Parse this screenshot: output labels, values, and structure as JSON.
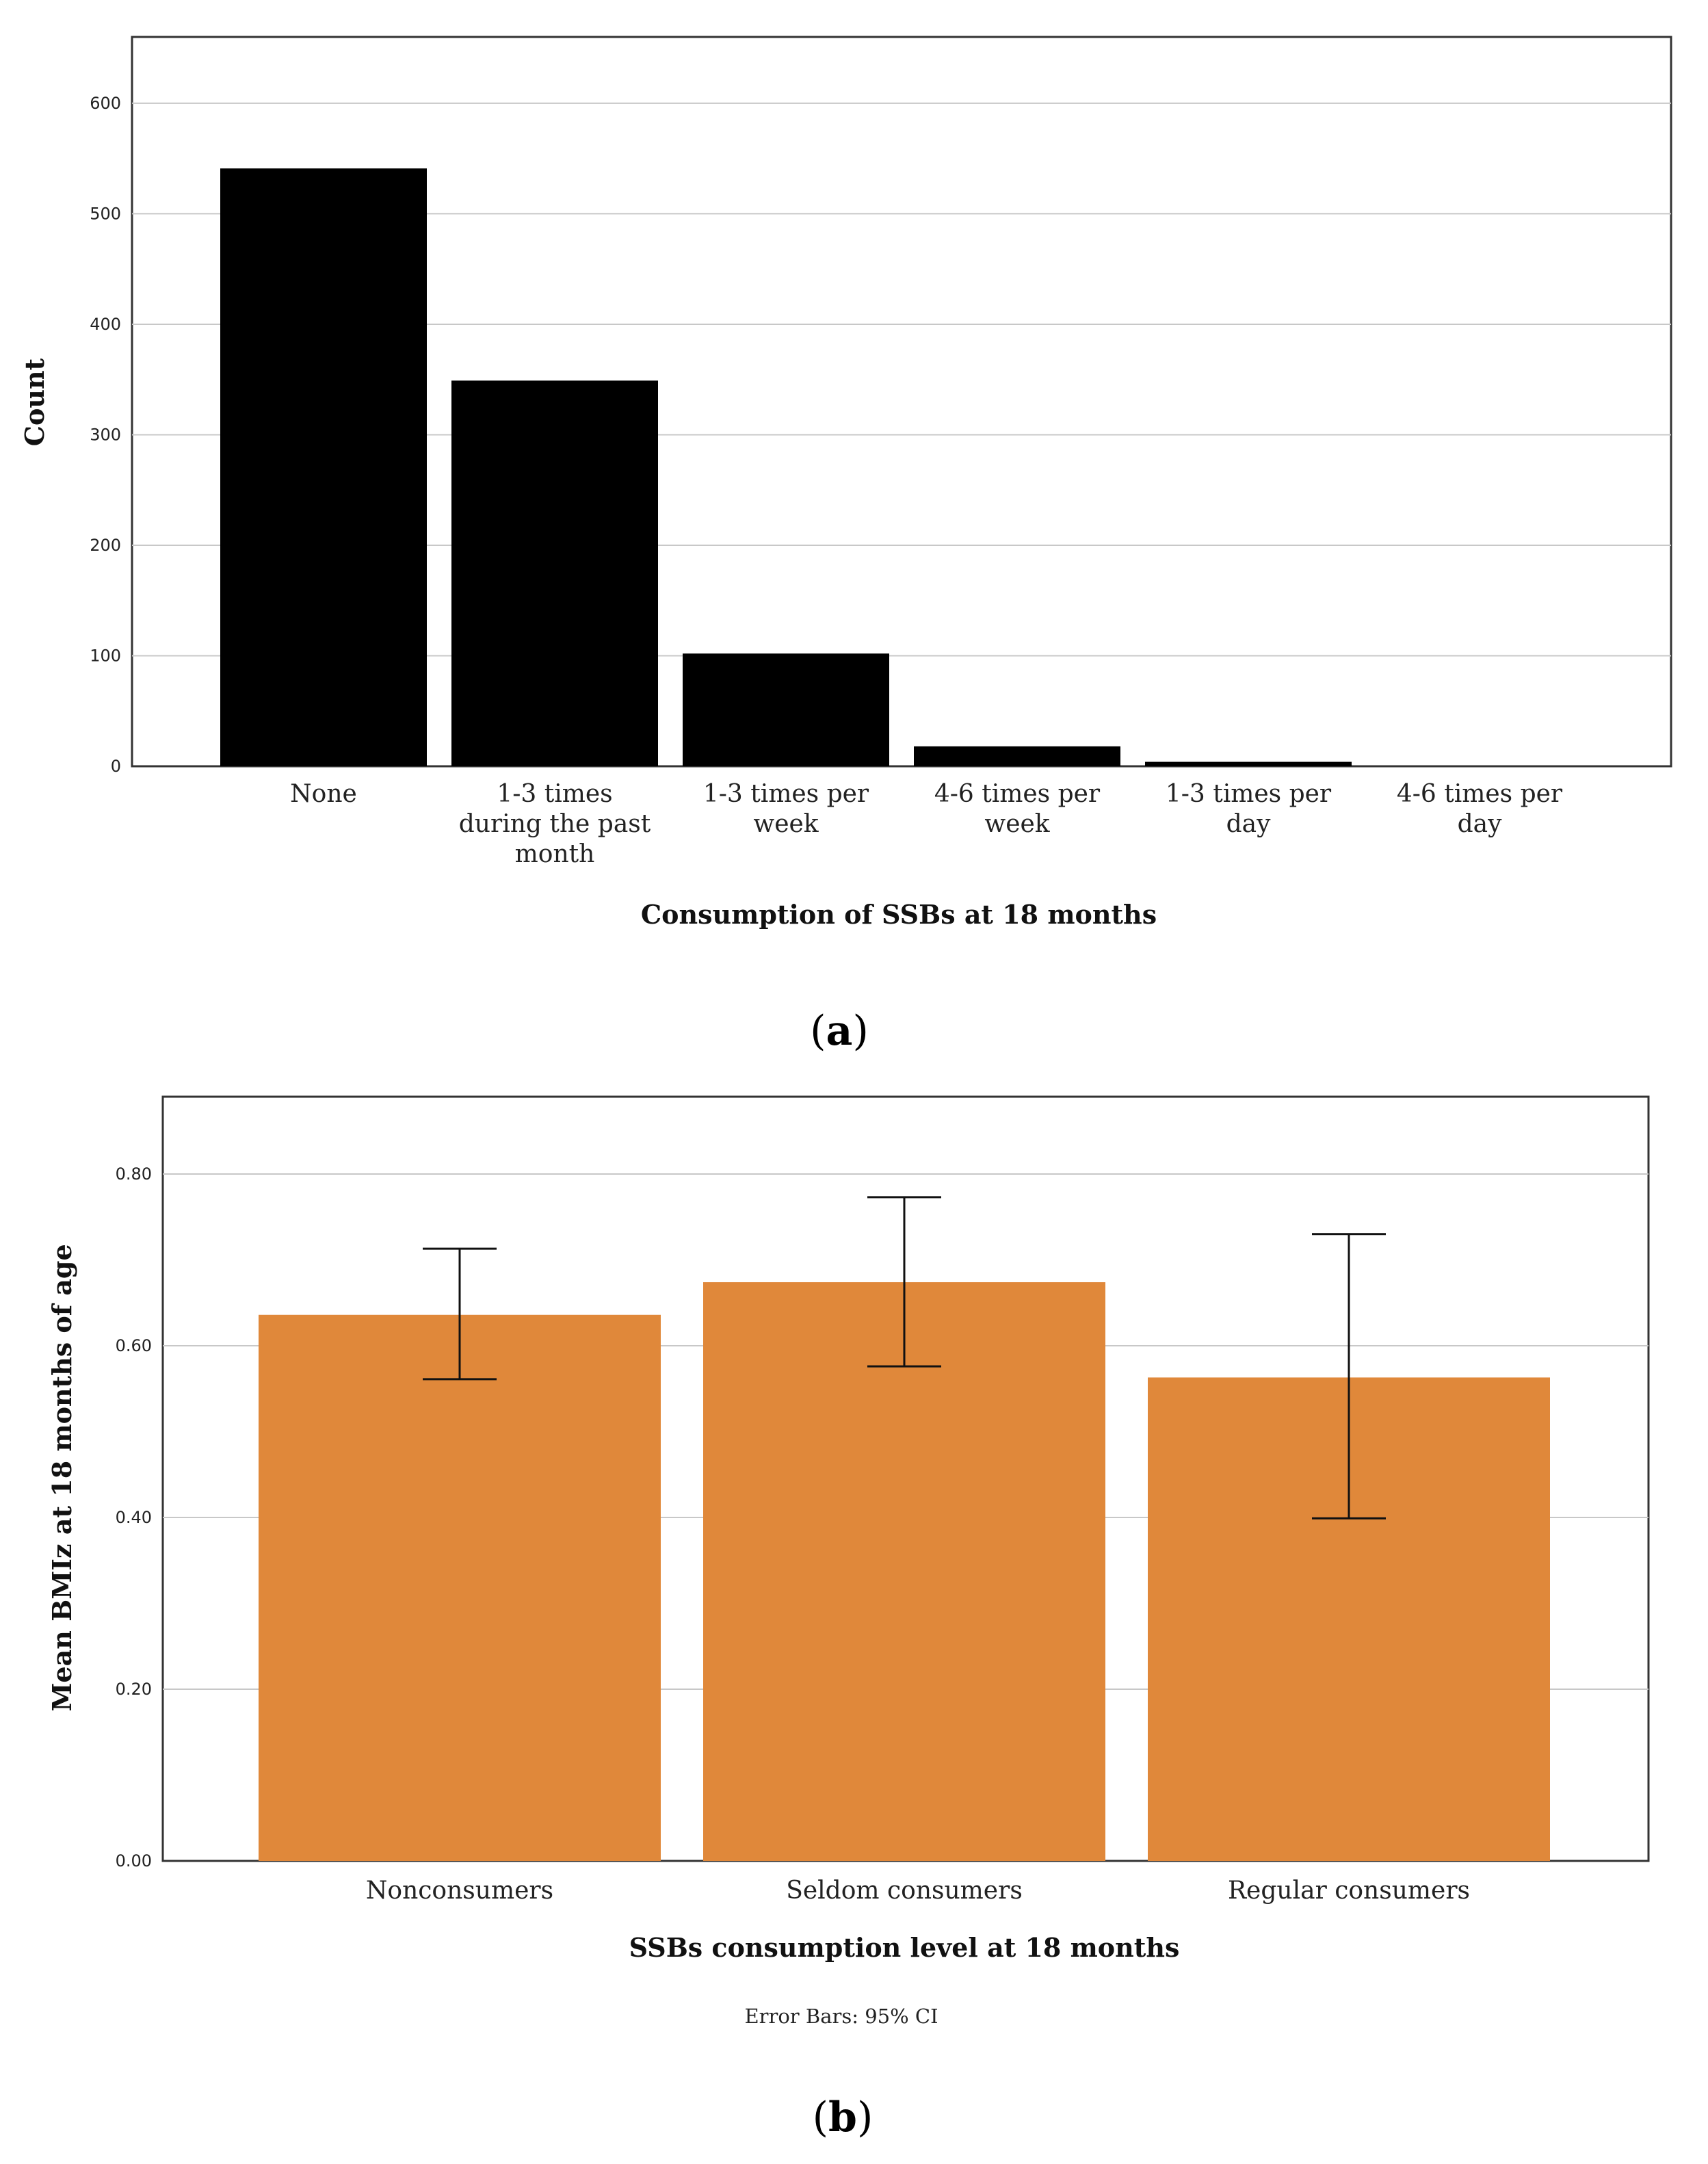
{
  "chart_data": [
    {
      "type": "bar",
      "panel_label_open": "(",
      "panel_label": "a",
      "panel_label_close": ")",
      "title": "",
      "xlabel": "Consumption of SSBs at 18 months",
      "ylabel": "Count",
      "ylim": [
        0,
        660
      ],
      "yticks": [
        "0",
        "100",
        "200",
        "300",
        "400",
        "500",
        "600"
      ],
      "grid": true,
      "bar_color": "#000000",
      "categories": [
        [
          "None"
        ],
        [
          "1-3 times",
          "during the past",
          "month"
        ],
        [
          "1-3 times per",
          "week"
        ],
        [
          "4-6 times per",
          "week"
        ],
        [
          "1-3 times per",
          "day"
        ],
        [
          "4-6 times per",
          "day"
        ]
      ],
      "values": [
        541,
        349,
        102,
        18,
        4,
        0
      ]
    },
    {
      "type": "bar",
      "panel_label_open": "(",
      "panel_label": "b",
      "panel_label_close": ")",
      "title": "",
      "xlabel": "SSBs consumption level at 18 months",
      "ylabel": "Mean BMIz at 18 months of age",
      "note": "Error Bars: 95% CI",
      "ylim": [
        0,
        0.89
      ],
      "yticks": [
        "0.00",
        "0.20",
        "0.40",
        "0.60",
        "0.80"
      ],
      "grid": true,
      "bar_color": "#e0883a",
      "categories": [
        "Nonconsumers",
        "Seldom consumers",
        "Regular consumers"
      ],
      "values": [
        0.636,
        0.674,
        0.563
      ],
      "error_low": [
        0.561,
        0.576,
        0.399
      ],
      "error_high": [
        0.713,
        0.773,
        0.73
      ]
    }
  ]
}
